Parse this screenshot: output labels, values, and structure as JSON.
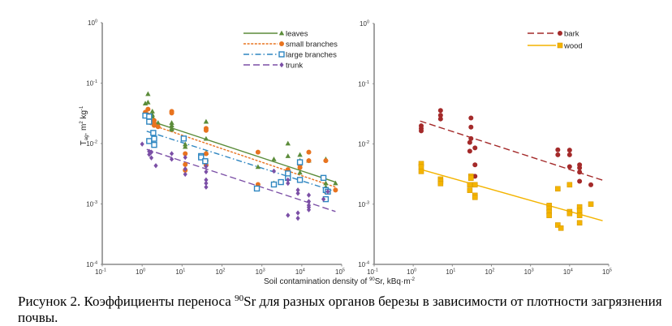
{
  "caption": {
    "prefix": "Рисунок 2. Коэффициенты  переноса ",
    "isotope_mass": "90",
    "suffix": "Sr для разных органов березы в зависимости  от плотности загрязнения почвы."
  },
  "chart_data": [
    {
      "type": "scatter",
      "panel": "left",
      "xscale": "log",
      "yscale": "log",
      "xlim": [
        0.1,
        100000
      ],
      "ylim": [
        0.0001,
        1
      ],
      "xticks": [
        "10^-1",
        "10^0",
        "10^1",
        "10^2",
        "10^3",
        "10^4",
        "10^5"
      ],
      "yticks": [
        "10^-4",
        "10^-3",
        "10^-2",
        "10^-1",
        "10^0"
      ],
      "ylabel": "Tag, m²·kg⁻¹",
      "xlabel": "",
      "legend_position": "top-right",
      "series": [
        {
          "name": "leaves",
          "color": "#5b8c3a",
          "marker": "triangle",
          "line_style": "solid",
          "fit": [
            [
              1.5,
              0.024
            ],
            [
              70000,
              0.0023
            ]
          ],
          "points": [
            [
              1.2,
              0.046
            ],
            [
              1.4,
              0.066
            ],
            [
              1.4,
              0.048
            ],
            [
              1.8,
              0.034
            ],
            [
              1.8,
              0.03
            ],
            [
              1.8,
              0.028
            ],
            [
              2.5,
              0.022
            ],
            [
              5.5,
              0.022
            ],
            [
              5.5,
              0.02
            ],
            [
              5.5,
              0.018
            ],
            [
              5.5,
              0.017
            ],
            [
              12,
              0.0097
            ],
            [
              12,
              0.0088
            ],
            [
              40,
              0.023
            ],
            [
              40,
              0.012
            ],
            [
              40,
              0.007
            ],
            [
              800,
              0.0041
            ],
            [
              2000,
              0.0055
            ],
            [
              2000,
              0.0022
            ],
            [
              4500,
              0.01
            ],
            [
              4500,
              0.0062
            ],
            [
              9000,
              0.0065
            ],
            [
              9000,
              0.0052
            ],
            [
              9000,
              0.0033
            ],
            [
              15000,
              0.0052
            ],
            [
              40000,
              0.0055
            ],
            [
              40000,
              0.0022
            ],
            [
              40000,
              0.0019
            ],
            [
              70000,
              0.0022
            ]
          ]
        },
        {
          "name": "small branches",
          "color": "#e8731f",
          "marker": "circle",
          "line_style": "dotted",
          "fit": [
            [
              1.5,
              0.021
            ],
            [
              70000,
              0.0019
            ]
          ],
          "points": [
            [
              1.2,
              0.033
            ],
            [
              1.4,
              0.037
            ],
            [
              1.4,
              0.03
            ],
            [
              2,
              0.024
            ],
            [
              2,
              0.021
            ],
            [
              2,
              0.02
            ],
            [
              2.5,
              0.019
            ],
            [
              5.5,
              0.034
            ],
            [
              5.5,
              0.032
            ],
            [
              12,
              0.0068
            ],
            [
              12,
              0.0045
            ],
            [
              12,
              0.0036
            ],
            [
              40,
              0.0178
            ],
            [
              40,
              0.0165
            ],
            [
              40,
              0.0068
            ],
            [
              40,
              0.0052
            ],
            [
              40,
              0.0044
            ],
            [
              800,
              0.0072
            ],
            [
              800,
              0.0021
            ],
            [
              4500,
              0.0034
            ],
            [
              4500,
              0.0037
            ],
            [
              9000,
              0.0049
            ],
            [
              9000,
              0.0044
            ],
            [
              9000,
              0.004
            ],
            [
              15000,
              0.0072
            ],
            [
              15000,
              0.0052
            ],
            [
              40000,
              0.0052
            ],
            [
              40000,
              0.0016
            ],
            [
              70000,
              0.0017
            ]
          ]
        },
        {
          "name": "large branches",
          "color": "#2e86c1",
          "marker": "open-square",
          "line_style": "dash-dot",
          "fit": [
            [
              1.3,
              0.016
            ],
            [
              70000,
              0.0016
            ]
          ],
          "points": [
            [
              1.2,
              0.029
            ],
            [
              1.5,
              0.028
            ],
            [
              1.5,
              0.023
            ],
            [
              1.5,
              0.011
            ],
            [
              1.9,
              0.015
            ],
            [
              2,
              0.012
            ],
            [
              2,
              0.0095
            ],
            [
              11,
              0.0121
            ],
            [
              30,
              0.0062
            ],
            [
              30,
              0.0059
            ],
            [
              38,
              0.0051
            ],
            [
              750,
              0.0018
            ],
            [
              2000,
              0.0021
            ],
            [
              3000,
              0.0023
            ],
            [
              4500,
              0.0027
            ],
            [
              4500,
              0.0032
            ],
            [
              9000,
              0.0025
            ],
            [
              9000,
              0.0049
            ],
            [
              35000,
              0.0027
            ],
            [
              40000,
              0.0017
            ],
            [
              40000,
              0.0012
            ],
            [
              45000,
              0.0016
            ]
          ]
        },
        {
          "name": "trunk",
          "color": "#7b4fa6",
          "marker": "diamond",
          "line_style": "dashed",
          "fit": [
            [
              1.3,
              0.008
            ],
            [
              70000,
              0.00075
            ]
          ],
          "points": [
            [
              1.0,
              0.0098
            ],
            [
              1.5,
              0.0074
            ],
            [
              1.5,
              0.0066
            ],
            [
              1.7,
              0.0072
            ],
            [
              1.7,
              0.0058
            ],
            [
              2.2,
              0.0043
            ],
            [
              5.5,
              0.0068
            ],
            [
              5.5,
              0.0055
            ],
            [
              12,
              0.0059
            ],
            [
              12,
              0.0038
            ],
            [
              12,
              0.0031
            ],
            [
              40,
              0.0042
            ],
            [
              40,
              0.0034
            ],
            [
              40,
              0.0025
            ],
            [
              40,
              0.0022
            ],
            [
              40,
              0.0019
            ],
            [
              2000,
              0.0035
            ],
            [
              4500,
              0.0025
            ],
            [
              4500,
              0.0022
            ],
            [
              4500,
              0.00065
            ],
            [
              8000,
              0.0017
            ],
            [
              8000,
              0.0015
            ],
            [
              8000,
              0.00071
            ],
            [
              8000,
              0.00058
            ],
            [
              15000,
              0.0014
            ],
            [
              15000,
              0.0011
            ],
            [
              15000,
              0.00095
            ],
            [
              15000,
              0.00088
            ],
            [
              15000,
              0.0008
            ],
            [
              35000,
              0.0012
            ],
            [
              45000,
              0.0016
            ]
          ]
        }
      ]
    },
    {
      "type": "scatter",
      "panel": "right",
      "xscale": "log",
      "yscale": "log",
      "xlim": [
        0.1,
        100000
      ],
      "ylim": [
        0.0001,
        1
      ],
      "xticks": [
        "10^-1",
        "10^0",
        "10^1",
        "10^2",
        "10^3",
        "10^4",
        "10^5"
      ],
      "yticks": [
        "10^-4",
        "10^-3",
        "10^-2",
        "10^-1",
        "10^0"
      ],
      "xlabel": "Soil contamination density of 90Sr, kBq·m-2",
      "legend_position": "top-right",
      "series": [
        {
          "name": "bark",
          "color": "#a42a2a",
          "marker": "circle",
          "line_style": "dashed",
          "fit": [
            [
              1.5,
              0.024
            ],
            [
              70000,
              0.0025
            ]
          ],
          "points": [
            [
              1.6,
              0.02
            ],
            [
              1.6,
              0.018
            ],
            [
              1.6,
              0.0165
            ],
            [
              5,
              0.036
            ],
            [
              5,
              0.03
            ],
            [
              5,
              0.026
            ],
            [
              30,
              0.027
            ],
            [
              30,
              0.019
            ],
            [
              30,
              0.0123
            ],
            [
              28,
              0.0106
            ],
            [
              28,
              0.0076
            ],
            [
              38,
              0.0086
            ],
            [
              38,
              0.0045
            ],
            [
              38,
              0.0029
            ],
            [
              5000,
              0.008
            ],
            [
              5000,
              0.0066
            ],
            [
              10000,
              0.0079
            ],
            [
              10000,
              0.0066
            ],
            [
              10000,
              0.0042
            ],
            [
              18000,
              0.0045
            ],
            [
              18000,
              0.004
            ],
            [
              18000,
              0.0034
            ],
            [
              18000,
              0.0024
            ],
            [
              35000,
              0.0021
            ]
          ]
        },
        {
          "name": "wood",
          "color": "#f4b400",
          "marker": "square",
          "line_style": "solid",
          "fit": [
            [
              1.5,
              0.0038
            ],
            [
              70000,
              0.00053
            ]
          ],
          "points": [
            [
              1.6,
              0.0047
            ],
            [
              1.6,
              0.0042
            ],
            [
              1.6,
              0.0035
            ],
            [
              5,
              0.0026
            ],
            [
              5,
              0.0024
            ],
            [
              5,
              0.0022
            ],
            [
              30,
              0.0029
            ],
            [
              30,
              0.0027
            ],
            [
              28,
              0.0021
            ],
            [
              28,
              0.0017
            ],
            [
              38,
              0.0021
            ],
            [
              38,
              0.0014
            ],
            [
              38,
              0.0013
            ],
            [
              3000,
              0.00095
            ],
            [
              3000,
              0.00085
            ],
            [
              3000,
              0.00075
            ],
            [
              3000,
              0.00065
            ],
            [
              5000,
              0.0018
            ],
            [
              5000,
              0.00045
            ],
            [
              6000,
              0.0004
            ],
            [
              10000,
              0.0021
            ],
            [
              10000,
              0.00075
            ],
            [
              10000,
              0.0007
            ],
            [
              18000,
              0.0009
            ],
            [
              18000,
              0.00078
            ],
            [
              18000,
              0.00065
            ],
            [
              18000,
              0.00049
            ],
            [
              35000,
              0.001
            ]
          ]
        }
      ]
    }
  ]
}
